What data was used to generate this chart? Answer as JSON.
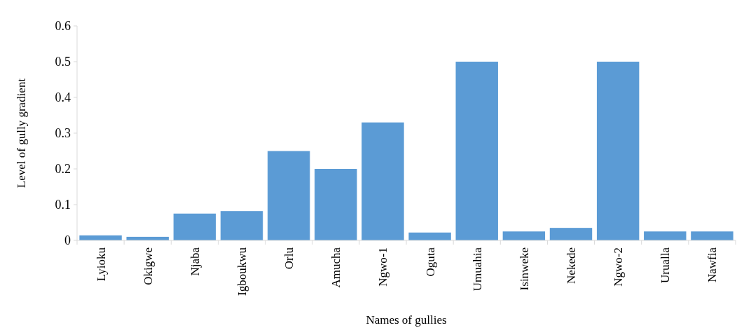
{
  "chart_data": {
    "type": "bar",
    "xlabel": "Names of gullies",
    "ylabel": "Level of gully gradient",
    "categories": [
      "Lyioku",
      "Okigwe",
      "Njaba",
      "Igboukwu",
      "Orlu",
      "Amucha",
      "Ngwo-1",
      "Oguta",
      "Umuahia",
      "Isinweke",
      "Nekede",
      "Ngwo-2",
      "Urualla",
      "Nawfia"
    ],
    "values": [
      0.014,
      0.01,
      0.075,
      0.082,
      0.25,
      0.2,
      0.33,
      0.022,
      0.5,
      0.025,
      0.035,
      0.5,
      0.025,
      0.025
    ],
    "color": "#5b9bd5",
    "ylim": [
      0,
      0.6
    ],
    "yticks": [
      0,
      0.1,
      0.2,
      0.3,
      0.4,
      0.5,
      0.6
    ],
    "grid": false
  }
}
